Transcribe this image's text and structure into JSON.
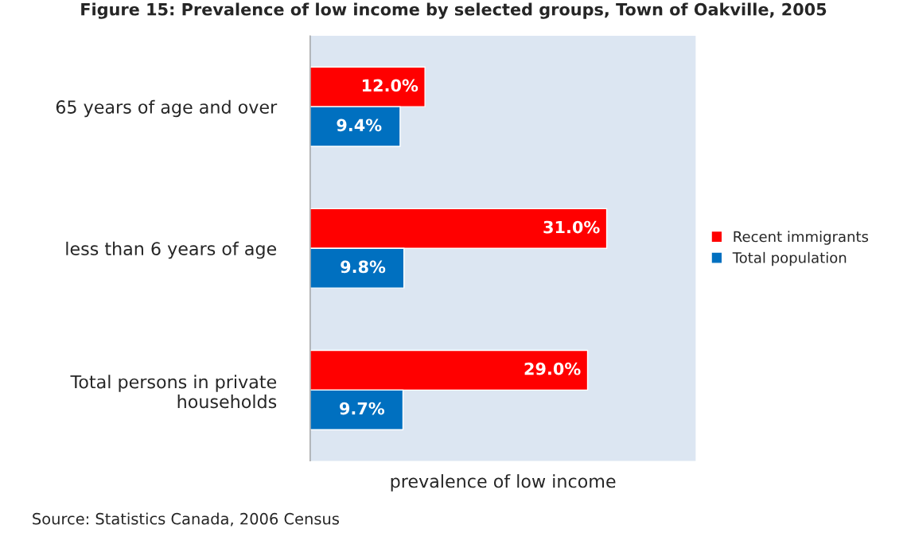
{
  "chart_data": {
    "type": "bar",
    "orientation": "horizontal",
    "title": "Figure 15: Prevalence of low income by selected groups, Town of Oakville, 2005",
    "xlabel": "prevalence of low income",
    "categories": [
      "65 years of age and over",
      "less than 6 years of age",
      "Total persons in private\nhouseholds"
    ],
    "series": [
      {
        "name": "Recent immigrants",
        "color": "#ff0000",
        "values": [
          12.0,
          31.0,
          29.0
        ],
        "value_labels": [
          "12.0%",
          "31.0%",
          "29.0%"
        ]
      },
      {
        "name": "Total population",
        "color": "#0070c0",
        "values": [
          9.4,
          9.8,
          9.7
        ],
        "value_labels": [
          "9.4%",
          "9.8%",
          "9.7%"
        ]
      }
    ],
    "legend": "right",
    "grid": false,
    "annotations": [
      "Source: Statistics Canada, 2006 Census"
    ]
  }
}
